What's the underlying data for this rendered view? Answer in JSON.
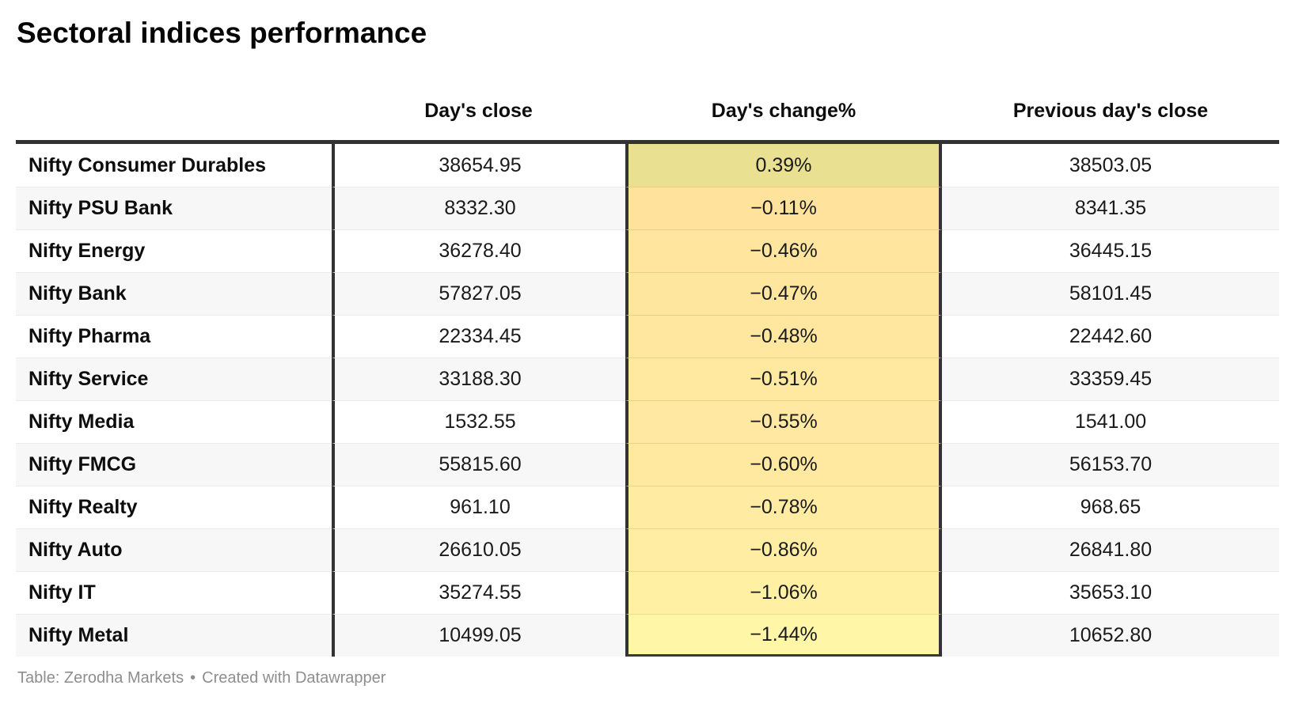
{
  "title": "Sectoral indices performance",
  "chart_data": {
    "type": "table",
    "title": "Sectoral indices performance",
    "columns": [
      "Day's close",
      "Day's change%",
      "Previous day's close"
    ],
    "row_header_label": "",
    "rows": [
      {
        "index": "Nifty Consumer Durables",
        "close": "38654.95",
        "change": "0.39%",
        "prev_close": "38503.05",
        "change_bg": "#e9e091"
      },
      {
        "index": "Nifty PSU Bank",
        "close": "8332.30",
        "change": "−0.11%",
        "prev_close": "8341.35",
        "change_bg": "#ffe39c"
      },
      {
        "index": "Nifty Energy",
        "close": "36278.40",
        "change": "−0.46%",
        "prev_close": "36445.15",
        "change_bg": "#ffe59e"
      },
      {
        "index": "Nifty Bank",
        "close": "57827.05",
        "change": "−0.47%",
        "prev_close": "58101.45",
        "change_bg": "#ffe69f"
      },
      {
        "index": "Nifty Pharma",
        "close": "22334.45",
        "change": "−0.48%",
        "prev_close": "22442.60",
        "change_bg": "#ffe7a0"
      },
      {
        "index": "Nifty Service",
        "close": "33188.30",
        "change": "−0.51%",
        "prev_close": "33359.45",
        "change_bg": "#ffe8a0"
      },
      {
        "index": "Nifty Media",
        "close": "1532.55",
        "change": "−0.55%",
        "prev_close": "1541.00",
        "change_bg": "#ffe8a1"
      },
      {
        "index": "Nifty FMCG",
        "close": "55815.60",
        "change": "−0.60%",
        "prev_close": "56153.70",
        "change_bg": "#ffe9a1"
      },
      {
        "index": "Nifty Realty",
        "close": "961.10",
        "change": "−0.78%",
        "prev_close": "968.65",
        "change_bg": "#ffeba2"
      },
      {
        "index": "Nifty Auto",
        "close": "26610.05",
        "change": "−0.86%",
        "prev_close": "26841.80",
        "change_bg": "#ffeda3"
      },
      {
        "index": "Nifty IT",
        "close": "35274.55",
        "change": "−1.06%",
        "prev_close": "35653.10",
        "change_bg": "#fff0a4"
      },
      {
        "index": "Nifty Metal",
        "close": "10499.05",
        "change": "−1.44%",
        "prev_close": "10652.80",
        "change_bg": "#fff6a7"
      }
    ],
    "layout": {
      "heatmap_column": "Day's change%",
      "heatmap_positive_color": "#e9e091",
      "heatmap_most_negative_color": "#fff6a7",
      "rule_color": "#333333",
      "zebra_row_color": "#f7f7f7",
      "grid": "horizontal-zebra",
      "legend_position": "none"
    }
  },
  "footer": {
    "source": "Table: Zerodha Markets",
    "separator": "•",
    "credit": "Created with Datawrapper"
  }
}
